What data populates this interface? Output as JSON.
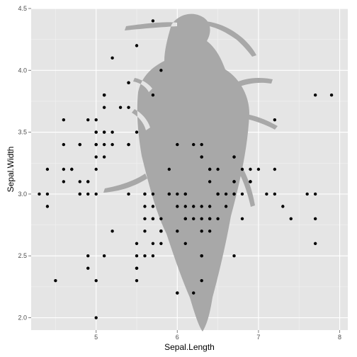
{
  "chart_data": {
    "type": "scatter",
    "xlabel": "Sepal.Length",
    "ylabel": "Sepal.Width",
    "xlim": [
      4.2,
      8.1
    ],
    "ylim": [
      1.9,
      4.5
    ],
    "x_ticks": [
      5,
      6,
      7,
      8
    ],
    "y_ticks": [
      2.0,
      2.5,
      3.0,
      3.5,
      4.0,
      4.5
    ],
    "x_tick_labels": [
      "5",
      "6",
      "7",
      "8"
    ],
    "y_tick_labels": [
      "2.0",
      "2.5",
      "3.0",
      "3.5",
      "4.0",
      "4.5"
    ],
    "grid": true,
    "colors": {
      "panel": "#e5e5e5",
      "grid_major": "#ffffff",
      "grid_minor": "#f2f2f2",
      "points": "#000000",
      "silhouette": "#a8a8a8"
    },
    "background_image": "beetle-silhouette",
    "points": [
      [
        5.1,
        3.5
      ],
      [
        4.9,
        3.0
      ],
      [
        4.7,
        3.2
      ],
      [
        4.6,
        3.1
      ],
      [
        5.0,
        3.6
      ],
      [
        5.4,
        3.9
      ],
      [
        4.6,
        3.4
      ],
      [
        5.0,
        3.4
      ],
      [
        4.4,
        2.9
      ],
      [
        4.9,
        3.1
      ],
      [
        5.4,
        3.7
      ],
      [
        4.8,
        3.4
      ],
      [
        4.8,
        3.0
      ],
      [
        4.3,
        3.0
      ],
      [
        5.8,
        4.0
      ],
      [
        5.7,
        4.4
      ],
      [
        5.4,
        3.9
      ],
      [
        5.1,
        3.5
      ],
      [
        5.7,
        3.8
      ],
      [
        5.1,
        3.8
      ],
      [
        5.4,
        3.4
      ],
      [
        5.1,
        3.7
      ],
      [
        4.6,
        3.6
      ],
      [
        5.1,
        3.3
      ],
      [
        4.8,
        3.4
      ],
      [
        5.0,
        3.0
      ],
      [
        5.0,
        3.4
      ],
      [
        5.2,
        3.5
      ],
      [
        5.2,
        3.4
      ],
      [
        4.7,
        3.2
      ],
      [
        4.8,
        3.1
      ],
      [
        5.4,
        3.4
      ],
      [
        5.2,
        4.1
      ],
      [
        5.5,
        4.2
      ],
      [
        4.9,
        3.1
      ],
      [
        5.0,
        3.2
      ],
      [
        5.5,
        3.5
      ],
      [
        4.9,
        3.6
      ],
      [
        4.4,
        3.0
      ],
      [
        5.1,
        3.4
      ],
      [
        5.0,
        3.5
      ],
      [
        4.5,
        2.3
      ],
      [
        4.4,
        3.2
      ],
      [
        5.0,
        3.5
      ],
      [
        5.1,
        3.8
      ],
      [
        4.8,
        3.0
      ],
      [
        5.1,
        3.8
      ],
      [
        4.6,
        3.2
      ],
      [
        5.3,
        3.7
      ],
      [
        5.0,
        3.3
      ],
      [
        7.0,
        3.2
      ],
      [
        6.4,
        3.2
      ],
      [
        6.9,
        3.1
      ],
      [
        5.5,
        2.3
      ],
      [
        6.5,
        2.8
      ],
      [
        5.7,
        2.8
      ],
      [
        6.3,
        3.3
      ],
      [
        4.9,
        2.4
      ],
      [
        6.6,
        2.9
      ],
      [
        5.2,
        2.7
      ],
      [
        5.0,
        2.0
      ],
      [
        5.9,
        3.0
      ],
      [
        6.0,
        2.2
      ],
      [
        6.1,
        2.9
      ],
      [
        5.6,
        2.9
      ],
      [
        6.7,
        3.1
      ],
      [
        5.6,
        3.0
      ],
      [
        5.8,
        2.7
      ],
      [
        6.2,
        2.2
      ],
      [
        5.6,
        2.5
      ],
      [
        5.9,
        3.2
      ],
      [
        6.1,
        2.8
      ],
      [
        6.3,
        2.5
      ],
      [
        6.1,
        2.8
      ],
      [
        6.4,
        2.9
      ],
      [
        6.6,
        3.0
      ],
      [
        6.8,
        2.8
      ],
      [
        6.7,
        3.0
      ],
      [
        6.0,
        2.9
      ],
      [
        5.7,
        2.6
      ],
      [
        5.5,
        2.4
      ],
      [
        5.5,
        2.4
      ],
      [
        5.8,
        2.7
      ],
      [
        6.0,
        2.7
      ],
      [
        5.4,
        3.0
      ],
      [
        6.0,
        3.4
      ],
      [
        6.7,
        3.1
      ],
      [
        6.3,
        2.3
      ],
      [
        5.6,
        3.0
      ],
      [
        5.5,
        2.5
      ],
      [
        5.5,
        2.6
      ],
      [
        6.1,
        3.0
      ],
      [
        5.8,
        2.6
      ],
      [
        5.0,
        2.3
      ],
      [
        5.6,
        2.7
      ],
      [
        5.7,
        3.0
      ],
      [
        5.7,
        2.9
      ],
      [
        6.2,
        2.9
      ],
      [
        5.1,
        2.5
      ],
      [
        5.7,
        2.8
      ],
      [
        6.3,
        3.3
      ],
      [
        5.8,
        2.7
      ],
      [
        7.1,
        3.0
      ],
      [
        6.3,
        2.9
      ],
      [
        6.5,
        3.0
      ],
      [
        7.6,
        3.0
      ],
      [
        4.9,
        2.5
      ],
      [
        7.3,
        2.9
      ],
      [
        6.7,
        2.5
      ],
      [
        7.2,
        3.6
      ],
      [
        6.5,
        3.2
      ],
      [
        6.4,
        2.7
      ],
      [
        6.8,
        3.0
      ],
      [
        5.7,
        2.5
      ],
      [
        5.8,
        2.8
      ],
      [
        6.4,
        3.2
      ],
      [
        6.5,
        3.0
      ],
      [
        7.7,
        3.8
      ],
      [
        7.7,
        2.6
      ],
      [
        6.0,
        2.2
      ],
      [
        6.9,
        3.2
      ],
      [
        5.6,
        2.8
      ],
      [
        7.7,
        2.8
      ],
      [
        6.3,
        2.7
      ],
      [
        6.7,
        3.3
      ],
      [
        7.2,
        3.2
      ],
      [
        6.2,
        2.8
      ],
      [
        6.1,
        3.0
      ],
      [
        6.4,
        2.8
      ],
      [
        7.2,
        3.0
      ],
      [
        7.4,
        2.8
      ],
      [
        7.9,
        3.8
      ],
      [
        6.4,
        2.8
      ],
      [
        6.3,
        2.8
      ],
      [
        6.1,
        2.6
      ],
      [
        7.7,
        3.0
      ],
      [
        6.3,
        3.4
      ],
      [
        6.4,
        3.1
      ],
      [
        6.0,
        3.0
      ],
      [
        6.9,
        3.1
      ],
      [
        6.7,
        3.1
      ],
      [
        6.9,
        3.1
      ],
      [
        5.8,
        2.7
      ],
      [
        6.8,
        3.2
      ],
      [
        6.7,
        3.3
      ],
      [
        6.7,
        3.0
      ],
      [
        6.3,
        2.5
      ],
      [
        6.5,
        3.0
      ],
      [
        6.2,
        3.4
      ],
      [
        5.9,
        3.0
      ]
    ]
  }
}
